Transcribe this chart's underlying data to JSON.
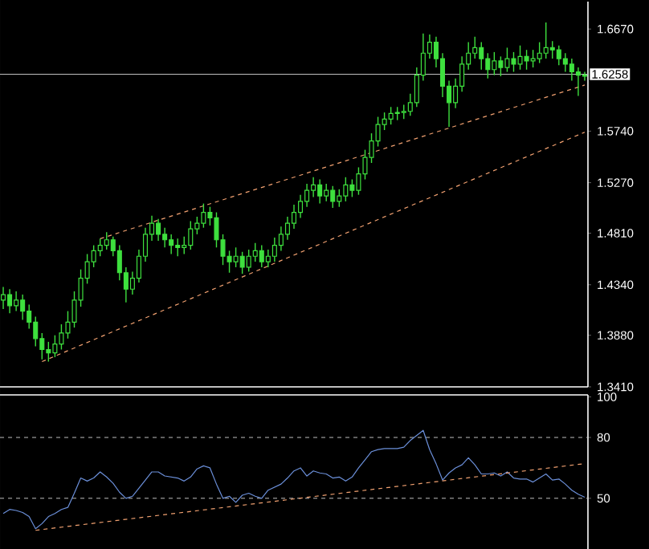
{
  "chart_data": [
    {
      "type": "candlestick",
      "color": "#3ee03e",
      "tick_labels": "y",
      "categories": [
        null,
        null,
        null,
        null,
        null,
        null,
        null,
        null,
        null,
        null,
        null,
        null,
        null,
        null,
        null,
        null,
        null,
        null,
        null,
        null,
        null,
        null,
        null,
        null,
        null,
        null,
        null,
        null,
        null,
        null,
        null,
        null,
        null,
        null,
        null,
        null,
        null,
        null,
        null,
        null,
        null,
        null,
        null,
        null,
        null,
        null,
        null,
        null,
        null,
        null,
        null,
        null,
        null,
        null,
        null,
        null,
        null,
        null,
        null,
        null,
        null,
        null,
        null,
        null,
        null,
        null,
        null,
        null,
        null,
        null,
        null,
        null,
        null,
        null,
        null,
        null,
        null,
        null,
        null,
        null,
        null,
        null,
        null,
        null,
        null,
        null,
        null,
        null,
        null,
        null,
        null
      ],
      "ohlc": [
        [
          1.42,
          1.432,
          1.412,
          1.425
        ],
        [
          1.425,
          1.43,
          1.408,
          1.415
        ],
        [
          1.415,
          1.428,
          1.41,
          1.42
        ],
        [
          1.42,
          1.425,
          1.402,
          1.41
        ],
        [
          1.41,
          1.416,
          1.394,
          1.4
        ],
        [
          1.4,
          1.405,
          1.378,
          1.385
        ],
        [
          1.385,
          1.39,
          1.366,
          1.375
        ],
        [
          1.375,
          1.382,
          1.364,
          1.372
        ],
        [
          1.372,
          1.388,
          1.368,
          1.38
        ],
        [
          1.38,
          1.398,
          1.375,
          1.39
        ],
        [
          1.39,
          1.41,
          1.385,
          1.4
        ],
        [
          1.4,
          1.428,
          1.395,
          1.42
        ],
        [
          1.42,
          1.448,
          1.414,
          1.44
        ],
        [
          1.44,
          1.462,
          1.435,
          1.455
        ],
        [
          1.455,
          1.47,
          1.45,
          1.465
        ],
        [
          1.465,
          1.476,
          1.46,
          1.47
        ],
        [
          1.47,
          1.482,
          1.466,
          1.475
        ],
        [
          1.475,
          1.478,
          1.46,
          1.465
        ],
        [
          1.465,
          1.47,
          1.438,
          1.445
        ],
        [
          1.445,
          1.45,
          1.418,
          1.43
        ],
        [
          1.43,
          1.446,
          1.425,
          1.44
        ],
        [
          1.44,
          1.466,
          1.436,
          1.46
        ],
        [
          1.46,
          1.486,
          1.455,
          1.48
        ],
        [
          1.48,
          1.497,
          1.474,
          1.49
        ],
        [
          1.49,
          1.494,
          1.474,
          1.48
        ],
        [
          1.48,
          1.486,
          1.468,
          1.475
        ],
        [
          1.475,
          1.48,
          1.462,
          1.47
        ],
        [
          1.47,
          1.476,
          1.46,
          1.468
        ],
        [
          1.468,
          1.478,
          1.462,
          1.47
        ],
        [
          1.47,
          1.492,
          1.466,
          1.485
        ],
        [
          1.485,
          1.496,
          1.48,
          1.49
        ],
        [
          1.49,
          1.508,
          1.486,
          1.5
        ],
        [
          1.5,
          1.505,
          1.488,
          1.495
        ],
        [
          1.495,
          1.5,
          1.468,
          1.475
        ],
        [
          1.475,
          1.48,
          1.452,
          1.46
        ],
        [
          1.46,
          1.465,
          1.445,
          1.455
        ],
        [
          1.455,
          1.468,
          1.45,
          1.46
        ],
        [
          1.46,
          1.464,
          1.444,
          1.45
        ],
        [
          1.45,
          1.466,
          1.446,
          1.46
        ],
        [
          1.46,
          1.472,
          1.455,
          1.465
        ],
        [
          1.465,
          1.47,
          1.45,
          1.455
        ],
        [
          1.455,
          1.466,
          1.45,
          1.46
        ],
        [
          1.46,
          1.477,
          1.455,
          1.47
        ],
        [
          1.47,
          1.487,
          1.465,
          1.48
        ],
        [
          1.48,
          1.496,
          1.475,
          1.49
        ],
        [
          1.49,
          1.507,
          1.485,
          1.5
        ],
        [
          1.5,
          1.516,
          1.495,
          1.51
        ],
        [
          1.51,
          1.526,
          1.505,
          1.52
        ],
        [
          1.52,
          1.532,
          1.514,
          1.525
        ],
        [
          1.525,
          1.53,
          1.508,
          1.515
        ],
        [
          1.515,
          1.526,
          1.51,
          1.52
        ],
        [
          1.52,
          1.524,
          1.504,
          1.51
        ],
        [
          1.51,
          1.521,
          1.505,
          1.515
        ],
        [
          1.515,
          1.532,
          1.51,
          1.525
        ],
        [
          1.525,
          1.53,
          1.514,
          1.52
        ],
        [
          1.52,
          1.541,
          1.516,
          1.535
        ],
        [
          1.535,
          1.557,
          1.53,
          1.55
        ],
        [
          1.55,
          1.572,
          1.545,
          1.565
        ],
        [
          1.565,
          1.587,
          1.56,
          1.58
        ],
        [
          1.58,
          1.591,
          1.575,
          1.585
        ],
        [
          1.585,
          1.596,
          1.58,
          1.59
        ],
        [
          1.59,
          1.596,
          1.584,
          1.591
        ],
        [
          1.591,
          1.598,
          1.585,
          1.592
        ],
        [
          1.592,
          1.608,
          1.588,
          1.6
        ],
        [
          1.6,
          1.632,
          1.596,
          1.625
        ],
        [
          1.625,
          1.663,
          1.62,
          1.645
        ],
        [
          1.645,
          1.662,
          1.64,
          1.655
        ],
        [
          1.655,
          1.66,
          1.632,
          1.64
        ],
        [
          1.64,
          1.645,
          1.605,
          1.615
        ],
        [
          1.615,
          1.62,
          1.578,
          1.6
        ],
        [
          1.6,
          1.622,
          1.595,
          1.615
        ],
        [
          1.615,
          1.642,
          1.61,
          1.635
        ],
        [
          1.635,
          1.655,
          1.63,
          1.645
        ],
        [
          1.645,
          1.66,
          1.64,
          1.65
        ],
        [
          1.65,
          1.655,
          1.63,
          1.64
        ],
        [
          1.64,
          1.645,
          1.622,
          1.63
        ],
        [
          1.63,
          1.646,
          1.625,
          1.638
        ],
        [
          1.638,
          1.642,
          1.624,
          1.632
        ],
        [
          1.632,
          1.65,
          1.628,
          1.64
        ],
        [
          1.64,
          1.646,
          1.628,
          1.635
        ],
        [
          1.635,
          1.652,
          1.63,
          1.642
        ],
        [
          1.642,
          1.648,
          1.63,
          1.638
        ],
        [
          1.638,
          1.648,
          1.632,
          1.64
        ],
        [
          1.64,
          1.655,
          1.636,
          1.645
        ],
        [
          1.645,
          1.673,
          1.64,
          1.65
        ],
        [
          1.65,
          1.656,
          1.64,
          1.648
        ],
        [
          1.648,
          1.652,
          1.634,
          1.64
        ],
        [
          1.64,
          1.645,
          1.628,
          1.635
        ],
        [
          1.635,
          1.64,
          1.62,
          1.628
        ],
        [
          1.628,
          1.632,
          1.606,
          1.625
        ],
        [
          1.625,
          1.628,
          1.62,
          1.624
        ]
      ],
      "series": [
        {
          "type": "line",
          "values": [
            null,
            null,
            null,
            null,
            null,
            null,
            1.364,
            null,
            null,
            null,
            null,
            null,
            null,
            null,
            null,
            null,
            null,
            null,
            null,
            null,
            null,
            null,
            null,
            null,
            null,
            null,
            null,
            null,
            null,
            null,
            null,
            null,
            null,
            null,
            null,
            null,
            null,
            null,
            null,
            null,
            null,
            null,
            null,
            null,
            null,
            null,
            null,
            null,
            null,
            null,
            null,
            null,
            null,
            null,
            null,
            null,
            null,
            null,
            null,
            null,
            null,
            null,
            null,
            null,
            null,
            null,
            null,
            null,
            null,
            null,
            null,
            null,
            null,
            null,
            null,
            null,
            null,
            null,
            null,
            null,
            null,
            null,
            null,
            null,
            null,
            null,
            null,
            null,
            null,
            null,
            1.573
          ],
          "color": "#f0a070",
          "line_style": "dashed"
        },
        {
          "type": "line",
          "values": [
            null,
            null,
            null,
            null,
            null,
            null,
            null,
            null,
            null,
            null,
            null,
            null,
            null,
            null,
            null,
            1.476,
            null,
            null,
            null,
            null,
            null,
            null,
            null,
            null,
            null,
            null,
            null,
            null,
            null,
            null,
            null,
            null,
            null,
            null,
            null,
            null,
            null,
            null,
            null,
            null,
            null,
            null,
            null,
            null,
            null,
            null,
            null,
            null,
            null,
            null,
            null,
            null,
            null,
            null,
            null,
            null,
            null,
            null,
            null,
            null,
            null,
            null,
            null,
            null,
            null,
            null,
            null,
            null,
            null,
            null,
            null,
            null,
            null,
            null,
            null,
            null,
            null,
            null,
            null,
            null,
            null,
            null,
            null,
            null,
            null,
            null,
            null,
            null,
            null,
            null,
            1.616
          ],
          "color": "#f0a070",
          "line_style": "dashed"
        }
      ],
      "ylim": [
        1.341,
        1.692
      ],
      "yticks": [
        {
          "value": 1.667,
          "label": "1.6670"
        },
        {
          "value": 1.574,
          "label": "1.5740"
        },
        {
          "value": 1.527,
          "label": "1.5270"
        },
        {
          "value": 1.481,
          "label": "1.4810"
        },
        {
          "value": 1.434,
          "label": "1.4340"
        },
        {
          "value": 1.388,
          "label": "1.3880"
        },
        {
          "value": 1.341,
          "label": "1.3410"
        }
      ],
      "ref_lines": [
        {
          "axis": "y",
          "value": 1.6258,
          "label": "1.6258",
          "color": "#c0c0c0",
          "line_style": "solid"
        }
      ]
    },
    {
      "type": "line",
      "tick_labels": "y",
      "ylim": [
        25,
        101
      ],
      "yticks": [
        50,
        80,
        100
      ],
      "categories": [
        null,
        null,
        null,
        null,
        null,
        null,
        null,
        null,
        null,
        null,
        null,
        null,
        null,
        null,
        null,
        null,
        null,
        null,
        null,
        null,
        null,
        null,
        null,
        null,
        null,
        null,
        null,
        null,
        null,
        null,
        null,
        null,
        null,
        null,
        null,
        null,
        null,
        null,
        null,
        null,
        null,
        null,
        null,
        null,
        null,
        null,
        null,
        null,
        null,
        null,
        null,
        null,
        null,
        null,
        null,
        null,
        null,
        null,
        null,
        null,
        null,
        null,
        null,
        null,
        null,
        null,
        null,
        null,
        null,
        null,
        null,
        null,
        null,
        null,
        null,
        null,
        null,
        null,
        null,
        null,
        null,
        null,
        null,
        null,
        null,
        null,
        null,
        null,
        null,
        null,
        null
      ],
      "series": [
        {
          "values": [
            42.5,
            44.5,
            44,
            43,
            41,
            35,
            37.5,
            41,
            42.5,
            44.5,
            45.5,
            52.5,
            60,
            58.5,
            60,
            63,
            60.5,
            57.4,
            53,
            50,
            51,
            55,
            59,
            63,
            63,
            61,
            60.5,
            60,
            58.5,
            60.5,
            64.5,
            66,
            65,
            57,
            50,
            51,
            48,
            51.5,
            52.5,
            51,
            50,
            54,
            55.5,
            57,
            60,
            63.5,
            65,
            61,
            63.5,
            62.5,
            62,
            60,
            60.5,
            58.5,
            60.5,
            65,
            69,
            73,
            74,
            74.5,
            74.5,
            74.5,
            75.2,
            78.5,
            81,
            83.5,
            74,
            67,
            59,
            62.5,
            65,
            66.5,
            70,
            66.5,
            62,
            62,
            62.5,
            61,
            63,
            60,
            59.5,
            59.5,
            58,
            60,
            62,
            59,
            59.5,
            57,
            54,
            52,
            50.5
          ],
          "color": "#6b8fd9",
          "line_style": "solid"
        },
        {
          "values": [
            null,
            null,
            null,
            null,
            null,
            34.2,
            null,
            null,
            null,
            null,
            null,
            null,
            null,
            null,
            null,
            null,
            null,
            null,
            null,
            null,
            null,
            null,
            null,
            null,
            null,
            null,
            null,
            null,
            null,
            null,
            null,
            null,
            null,
            null,
            null,
            null,
            null,
            null,
            null,
            null,
            null,
            null,
            null,
            null,
            null,
            null,
            null,
            null,
            null,
            null,
            null,
            null,
            null,
            null,
            null,
            null,
            null,
            null,
            null,
            null,
            null,
            null,
            null,
            null,
            null,
            null,
            null,
            null,
            null,
            null,
            null,
            null,
            null,
            null,
            null,
            null,
            null,
            null,
            null,
            null,
            null,
            null,
            null,
            null,
            null,
            null,
            null,
            null,
            null,
            null,
            67.1
          ],
          "color": "#f0a070",
          "line_style": "dashed"
        }
      ],
      "ref_lines": [
        {
          "axis": "y",
          "value": 80,
          "color": "#c0c0c0",
          "line_style": "dashed"
        },
        {
          "axis": "y",
          "value": 50,
          "color": "#c0c0c0",
          "line_style": "dashed"
        }
      ]
    }
  ]
}
